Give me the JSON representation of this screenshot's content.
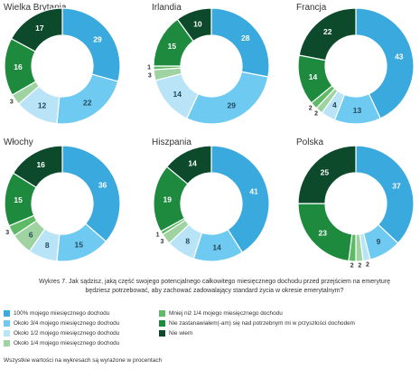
{
  "colors": {
    "100": "#3aa9dd",
    "3_4": "#6fcaf2",
    "1_2": "#b9e3f6",
    "1_4": "#9fd4a2",
    "lt_1_4": "#5fba67",
    "none": "#1e8a3e",
    "dont_know": "#0c4a2b"
  },
  "chart_data": [
    {
      "type": "pie",
      "title": "Wielka Brytania",
      "slices": [
        {
          "key": "100",
          "value": 29
        },
        {
          "key": "3_4",
          "value": 22
        },
        {
          "key": "1_2",
          "value": 12
        },
        {
          "key": "1_4",
          "value": 3
        },
        {
          "key": "lt_1_4",
          "value": 0
        },
        {
          "key": "none",
          "value": 16
        },
        {
          "key": "dont_know",
          "value": 17
        }
      ]
    },
    {
      "type": "pie",
      "title": "Irlandia",
      "slices": [
        {
          "key": "100",
          "value": 28
        },
        {
          "key": "3_4",
          "value": 29
        },
        {
          "key": "1_2",
          "value": 14
        },
        {
          "key": "1_4",
          "value": 3
        },
        {
          "key": "lt_1_4",
          "value": 1
        },
        {
          "key": "none",
          "value": 15
        },
        {
          "key": "dont_know",
          "value": 10
        }
      ]
    },
    {
      "type": "pie",
      "title": "Francja",
      "slices": [
        {
          "key": "100",
          "value": 43
        },
        {
          "key": "3_4",
          "value": 13
        },
        {
          "key": "1_2",
          "value": 4
        },
        {
          "key": "1_4",
          "value": 2
        },
        {
          "key": "lt_1_4",
          "value": 2
        },
        {
          "key": "none",
          "value": 14
        },
        {
          "key": "dont_know",
          "value": 22
        }
      ]
    },
    {
      "type": "pie",
      "title": "Włochy",
      "slices": [
        {
          "key": "100",
          "value": 36
        },
        {
          "key": "3_4",
          "value": 15
        },
        {
          "key": "1_2",
          "value": 8
        },
        {
          "key": "1_4",
          "value": 6
        },
        {
          "key": "lt_1_4",
          "value": 3
        },
        {
          "key": "none",
          "value": 15
        },
        {
          "key": "dont_know",
          "value": 16
        }
      ]
    },
    {
      "type": "pie",
      "title": "Hiszpania",
      "slices": [
        {
          "key": "100",
          "value": 41
        },
        {
          "key": "3_4",
          "value": 14
        },
        {
          "key": "1_2",
          "value": 8
        },
        {
          "key": "1_4",
          "value": 3
        },
        {
          "key": "lt_1_4",
          "value": 1
        },
        {
          "key": "none",
          "value": 19
        },
        {
          "key": "dont_know",
          "value": 14
        }
      ]
    },
    {
      "type": "pie",
      "title": "Polska",
      "slices": [
        {
          "key": "100",
          "value": 37
        },
        {
          "key": "3_4",
          "value": 9
        },
        {
          "key": "1_2",
          "value": 2
        },
        {
          "key": "1_4",
          "value": 2
        },
        {
          "key": "lt_1_4",
          "value": 2
        },
        {
          "key": "none",
          "value": 23
        },
        {
          "key": "dont_know",
          "value": 25
        }
      ]
    }
  ],
  "caption": "Wykres 7. Jak sądzisz, jaką część swojego potencjalnego całkowitego miesięcznego dochodu przed przejściem na emeryturę będziesz potrzebować, aby zachować zadowalający standard życia w okresie emerytalnym?",
  "legend": [
    {
      "key": "100",
      "label": "100% mojego miesięcznego dochodu"
    },
    {
      "key": "3_4",
      "label": "Około 3/4 mojego miesięcznego dochodu"
    },
    {
      "key": "1_2",
      "label": "Około 1/2 mojego miesięcznego dochodu"
    },
    {
      "key": "1_4",
      "label": "Około 1/4 mojego miesięcznego dochodu"
    },
    {
      "key": "lt_1_4",
      "label": "Mniej niż 1/4 mojego miesięcznego dochodu"
    },
    {
      "key": "none",
      "label": "Nie zastanawiałem(-am) się nad potrzebnym mi w przyszłości dochodem"
    },
    {
      "key": "dont_know",
      "label": "Nie wiem"
    }
  ],
  "note": "Wszystkie wartości na wykresach są wyrażone w procentach"
}
